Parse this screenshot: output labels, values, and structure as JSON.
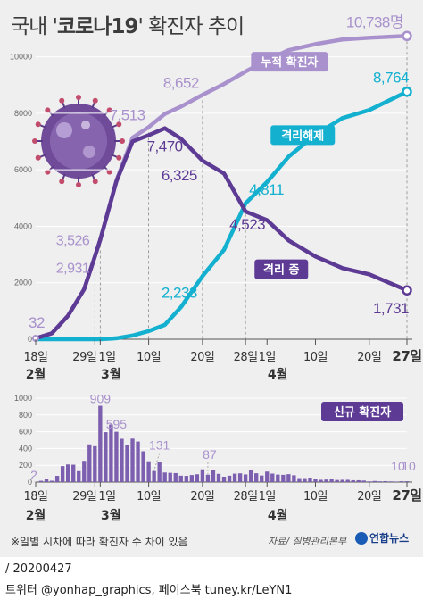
{
  "title": {
    "prefix": "국내 '",
    "main": "코로나19",
    "suffix": "' 확진자 추이"
  },
  "colors": {
    "cumulative": "#a891cc",
    "released": "#13b0cf",
    "isolation": "#5d3a94",
    "daily": "#7d5fb0",
    "axis": "#555555",
    "grid": "#999999"
  },
  "icons": {
    "virus": "coronavirus-illustration-icon"
  },
  "x_axis": {
    "day_labels": [
      "18일",
      "29일",
      "1일",
      "10일",
      "20일",
      "28일",
      "1일",
      "10일",
      "20일",
      "27일"
    ],
    "month_labels": [
      "2월",
      "3월",
      "4월"
    ]
  },
  "chart_data": [
    {
      "type": "line",
      "ylim": [
        0,
        11000
      ],
      "yticks": [
        "0",
        "2000",
        "4000",
        "6000",
        "8000",
        "10000"
      ],
      "unit": "명",
      "x": [
        "2020-02-18",
        "2020-02-21",
        "2020-02-24",
        "2020-02-27",
        "2020-02-29",
        "2020-03-01",
        "2020-03-04",
        "2020-03-07",
        "2020-03-10",
        "2020-03-13",
        "2020-03-16",
        "2020-03-20",
        "2020-03-24",
        "2020-03-28",
        "2020-04-01",
        "2020-04-05",
        "2020-04-10",
        "2020-04-15",
        "2020-04-20",
        "2020-04-27"
      ],
      "series": [
        {
          "name": "누적 확진자",
          "values": [
            32,
            210,
            830,
            1770,
            2931,
            3526,
            5621,
            7134,
            7513,
            7979,
            8236,
            8652,
            9037,
            9478,
            9887,
            10237,
            10450,
            10613,
            10674,
            10738
          ]
        },
        {
          "name": "격리해제",
          "values": [
            0,
            0,
            0,
            0,
            0,
            0,
            34,
            130,
            288,
            510,
            1137,
            2233,
            3166,
            4811,
            5567,
            6463,
            7243,
            7829,
            8114,
            8764
          ]
        },
        {
          "name": "격리 중",
          "values": [
            32,
            210,
            830,
            1770,
            2931,
            3526,
            5587,
            7004,
            7225,
            7470,
            7099,
            6325,
            5871,
            4523,
            4216,
            3500,
            2930,
            2520,
            2297,
            1731
          ]
        }
      ],
      "annotations": [
        "32",
        "3,526",
        "2,931",
        "7,513",
        "8,652",
        "10,738명",
        "7,470",
        "6,325",
        "4,523",
        "1,731",
        "2,233",
        "4,811",
        "8,764"
      ],
      "series_labels": [
        "누적 확진자",
        "격리해제",
        "격리 중"
      ]
    },
    {
      "type": "bar",
      "name": "신규 확진자",
      "ylim": [
        0,
        1000
      ],
      "yticks": [
        "0",
        "200",
        "400",
        "600",
        "800",
        "1000"
      ],
      "x_start": "2020-02-18",
      "values": [
        2,
        15,
        34,
        16,
        74,
        190,
        210,
        207,
        130,
        253,
        449,
        427,
        909,
        595,
        686,
        600,
        516,
        438,
        518,
        483,
        367,
        248,
        131,
        242,
        114,
        110,
        107,
        76,
        74,
        84,
        93,
        152,
        87,
        147,
        98,
        64,
        76,
        100,
        104,
        91,
        146,
        105,
        78,
        125,
        101,
        89,
        86,
        94,
        81,
        47,
        47,
        53,
        39,
        27,
        30,
        32,
        25,
        27,
        27,
        22,
        22,
        18,
        8,
        13,
        9,
        11,
        8,
        6,
        10,
        10
      ],
      "annotations": [
        "2",
        "909",
        "595",
        "131",
        "87",
        "10",
        "10"
      ]
    }
  ],
  "footer": {
    "note": "※일별 시차에 따라 확진자 수 차이 있음",
    "source": "자료/ 질병관리본부",
    "logo": "연합뉴스",
    "date": "/ 20200427",
    "social": "트위터 @yonhap_graphics, 페이스북 tuney.kr/LeYN1"
  }
}
